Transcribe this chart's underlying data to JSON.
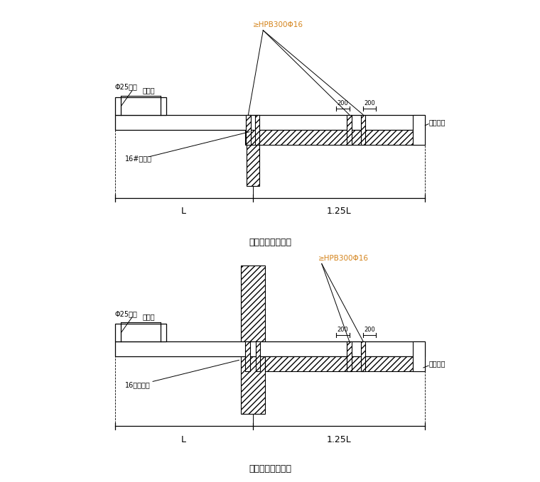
{
  "bg_color": "#ffffff",
  "title1": "悬挑钢梁楼面构造",
  "title2": "悬挑钢梁穿墙构造",
  "label_hpb1": "≥HPB300Φ16",
  "label_hpb2": "≥HPB300Φ16",
  "label_phi25_1": "Φ25钢筋",
  "label_phi25_2": "Φ25钢筋",
  "label_width1": "同架宽",
  "label_width2": "同架宽",
  "label_ibeam1": "16#工字钢",
  "label_ibeam2": "16号工字钢",
  "label_wood1": "木楔塞紧",
  "label_wood2": "木楔塞紧",
  "label_200a1": "200",
  "label_200b1": "200",
  "label_200a2": "200",
  "label_200b2": "200",
  "label_L1": "L",
  "label_125L1": "1.25L",
  "label_L2": "L",
  "label_125L2": "1.25L",
  "orange_color": "#d4831a"
}
